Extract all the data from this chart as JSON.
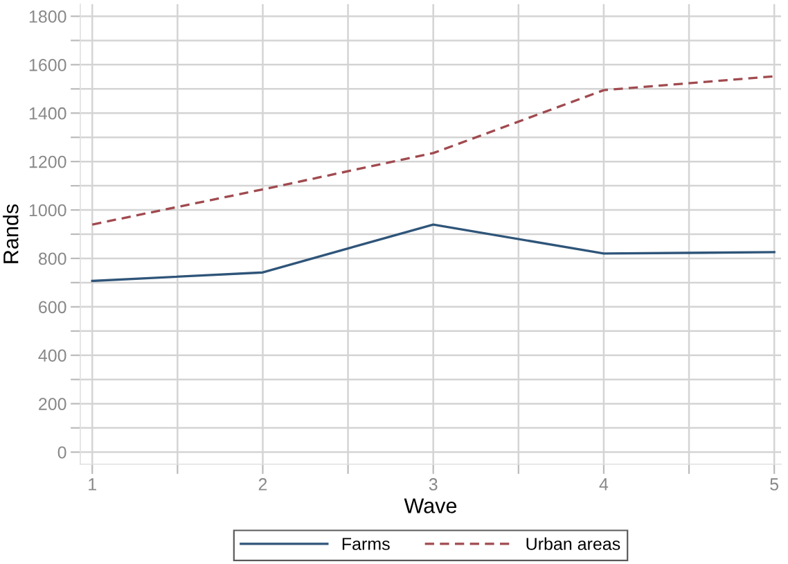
{
  "chart_data": {
    "type": "line",
    "xlabel": "Wave",
    "ylabel": "Rands",
    "x": [
      1,
      2,
      3,
      4,
      5
    ],
    "series": [
      {
        "name": "Farms",
        "color": "#2f5579",
        "values": [
          707,
          742,
          940,
          820,
          826
        ],
        "line_style": "solid"
      },
      {
        "name": "Urban areas",
        "color": "#a04a4f",
        "values": [
          940,
          1085,
          1235,
          1495,
          1552
        ],
        "line_style": "dashed"
      }
    ],
    "xlim": [
      0.93,
      5.04
    ],
    "ylim": [
      -50,
      1850
    ],
    "xticks": [
      1,
      {
        "value": 1.5,
        "label": null
      },
      2,
      {
        "value": 2.5,
        "label": null
      },
      3,
      {
        "value": 3.5,
        "label": null
      },
      4,
      {
        "value": 4.5,
        "label": null
      },
      5
    ],
    "yticks": [
      0,
      {
        "value": 100,
        "label": null
      },
      200,
      {
        "value": 300,
        "label": null
      },
      400,
      {
        "value": 500,
        "label": null
      },
      600,
      {
        "value": 700,
        "label": null
      },
      800,
      {
        "value": 900,
        "label": null
      },
      1000,
      {
        "value": 1100,
        "label": null
      },
      1200,
      {
        "value": 1300,
        "label": null
      },
      1400,
      {
        "value": 1500,
        "label": null
      },
      1600,
      {
        "value": 1700,
        "label": null
      },
      1800
    ],
    "grid": true,
    "legend": "bottom",
    "marker": "none"
  }
}
